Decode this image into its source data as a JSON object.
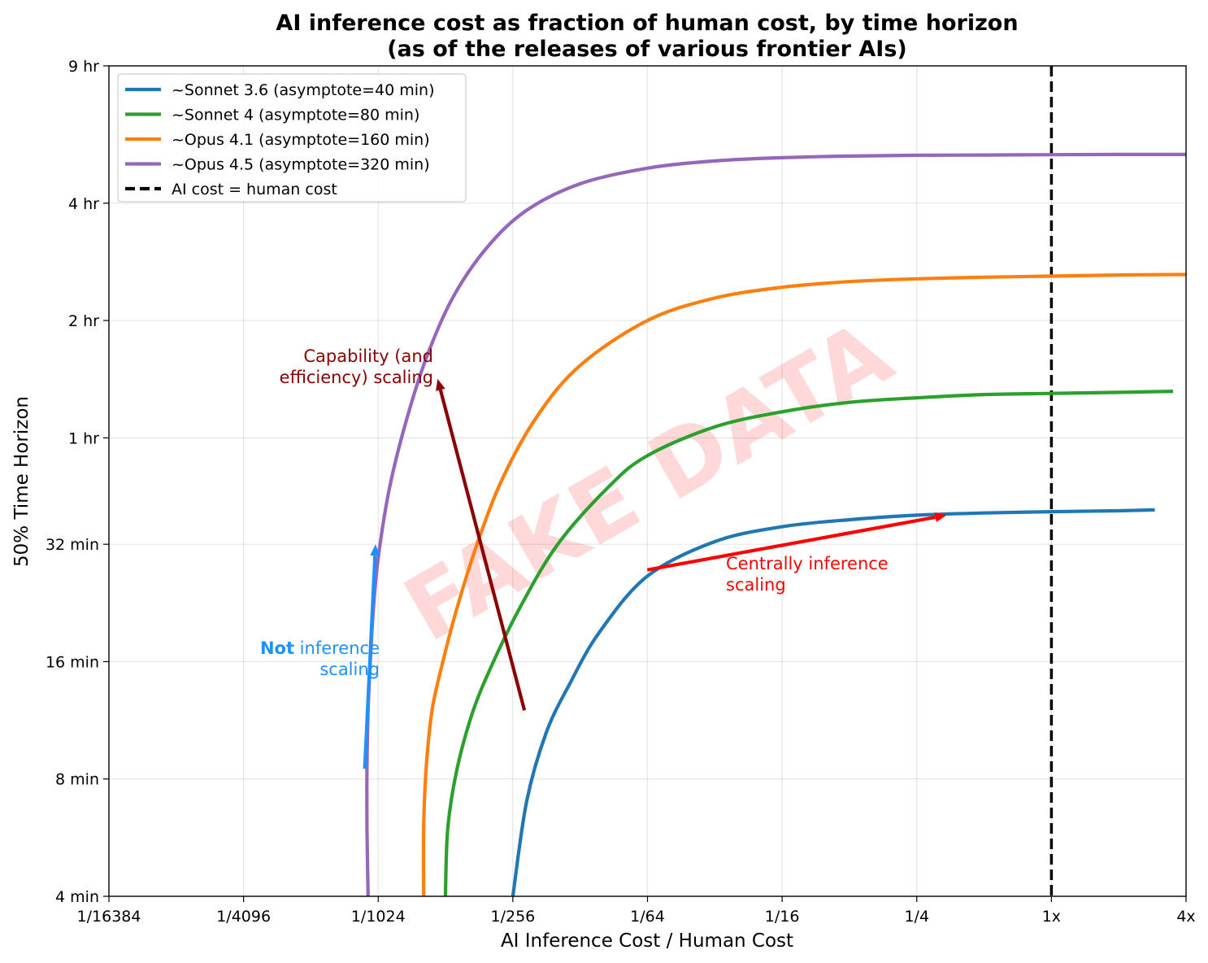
{
  "chart_data": {
    "type": "line",
    "title": "AI inference cost as fraction of human cost, by time horizon",
    "subtitle": "(as of the releases of various frontier AIs)",
    "xlabel": "AI Inference Cost / Human Cost",
    "ylabel": "50% Time Horizon",
    "x_scale": "log2",
    "y_scale": "log2",
    "xlim": [
      6.103515625e-05,
      4
    ],
    "ylim_minutes": [
      4,
      540
    ],
    "grid": true,
    "legend_placement": "top-left",
    "x_ticks": [
      {
        "value": 6.103515625e-05,
        "label": "1/16384"
      },
      {
        "value": 0.000244140625,
        "label": "1/4096"
      },
      {
        "value": 0.0009765625,
        "label": "1/1024"
      },
      {
        "value": 0.00390625,
        "label": "1/256"
      },
      {
        "value": 0.015625,
        "label": "1/64"
      },
      {
        "value": 0.0625,
        "label": "1/16"
      },
      {
        "value": 0.25,
        "label": "1/4"
      },
      {
        "value": 1,
        "label": "1x"
      },
      {
        "value": 4,
        "label": "4x"
      }
    ],
    "y_ticks": [
      {
        "value": 4,
        "label": "4 min"
      },
      {
        "value": 8,
        "label": "8 min"
      },
      {
        "value": 16,
        "label": "16 min"
      },
      {
        "value": 32,
        "label": "32 min"
      },
      {
        "value": 60,
        "label": "1 hr"
      },
      {
        "value": 120,
        "label": "2 hr"
      },
      {
        "value": 240,
        "label": "4 hr"
      },
      {
        "value": 540,
        "label": "9 hr"
      }
    ],
    "series": [
      {
        "name": "~Sonnet 3.6 (asymptote=40 min)",
        "color": "#1f77b4",
        "points": [
          [
            0.00390625,
            4
          ],
          [
            0.0045,
            7
          ],
          [
            0.0055,
            10.5
          ],
          [
            0.007,
            14
          ],
          [
            0.0095,
            19
          ],
          [
            0.0156,
            26.5
          ],
          [
            0.0312,
            32.5
          ],
          [
            0.0625,
            35.5
          ],
          [
            0.125,
            37
          ],
          [
            0.25,
            38
          ],
          [
            0.5,
            38.5
          ],
          [
            1,
            38.8
          ],
          [
            2,
            39
          ],
          [
            2.9,
            39.2
          ]
        ]
      },
      {
        "name": "~Sonnet 4 (asymptote=80 min)",
        "color": "#2ca02c",
        "points": [
          [
            0.00195,
            4
          ],
          [
            0.002,
            6
          ],
          [
            0.0022,
            8.5
          ],
          [
            0.0026,
            12
          ],
          [
            0.0032,
            16
          ],
          [
            0.0042,
            22
          ],
          [
            0.0062,
            32
          ],
          [
            0.0105,
            45
          ],
          [
            0.0156,
            54
          ],
          [
            0.0312,
            64
          ],
          [
            0.0625,
            70
          ],
          [
            0.125,
            74
          ],
          [
            0.25,
            76
          ],
          [
            0.5,
            77.5
          ],
          [
            1,
            78
          ],
          [
            2,
            78.5
          ],
          [
            3.5,
            79
          ]
        ]
      },
      {
        "name": "~Opus 4.1 (asymptote=160 min)",
        "color": "#ff7f0e",
        "points": [
          [
            0.00156,
            4
          ],
          [
            0.00156,
            6
          ],
          [
            0.0016,
            8.5
          ],
          [
            0.0017,
            12
          ],
          [
            0.0019,
            16
          ],
          [
            0.0022,
            22
          ],
          [
            0.0027,
            32
          ],
          [
            0.0035,
            47
          ],
          [
            0.005,
            68
          ],
          [
            0.0078,
            92
          ],
          [
            0.0156,
            120
          ],
          [
            0.0312,
            137
          ],
          [
            0.0625,
            146
          ],
          [
            0.125,
            151
          ],
          [
            0.25,
            153.5
          ],
          [
            0.5,
            155
          ],
          [
            1,
            156
          ],
          [
            2,
            157
          ],
          [
            4,
            157.5
          ]
        ]
      },
      {
        "name": "~Opus 4.5 (asymptote=320 min)",
        "color": "#9467bd",
        "points": [
          [
            0.00088,
            4
          ],
          [
            0.00087,
            6
          ],
          [
            0.00087,
            8.5
          ],
          [
            0.00088,
            12
          ],
          [
            0.0009,
            16
          ],
          [
            0.00093,
            22
          ],
          [
            0.00098,
            30
          ],
          [
            0.0011,
            45
          ],
          [
            0.0013,
            66
          ],
          [
            0.0016,
            96
          ],
          [
            0.0021,
            137
          ],
          [
            0.003,
            185
          ],
          [
            0.0045,
            230
          ],
          [
            0.0078,
            269
          ],
          [
            0.0156,
            295
          ],
          [
            0.0312,
            308
          ],
          [
            0.0625,
            314
          ],
          [
            0.125,
            317
          ],
          [
            0.25,
            318.5
          ],
          [
            0.5,
            319
          ],
          [
            1,
            319.5
          ],
          [
            2,
            320
          ],
          [
            4,
            320
          ]
        ]
      }
    ],
    "reference_line": {
      "name": "AI cost = human cost",
      "x": 1,
      "color": "#000000",
      "style": "dashed"
    },
    "annotations": [
      {
        "lines": [
          "Capability (and",
          "efficiency) scaling"
        ],
        "color": "#8b0000",
        "arrow_from": [
          0.0044,
          12
        ],
        "arrow_to": [
          0.0018,
          85
        ]
      },
      {
        "lines": [
          "Centrally inference",
          "scaling"
        ],
        "color": "#ff0000",
        "arrow_from": [
          0.0156,
          27.5
        ],
        "arrow_to": [
          0.34,
          38
        ]
      },
      {
        "bold": "Not",
        "rest": " inference",
        "line2": "scaling",
        "color": "#1e90ff",
        "arrow_from": [
          0.00085,
          8.5
        ],
        "arrow_to": [
          0.00095,
          32
        ]
      }
    ],
    "watermark": "FAKE DATA"
  }
}
